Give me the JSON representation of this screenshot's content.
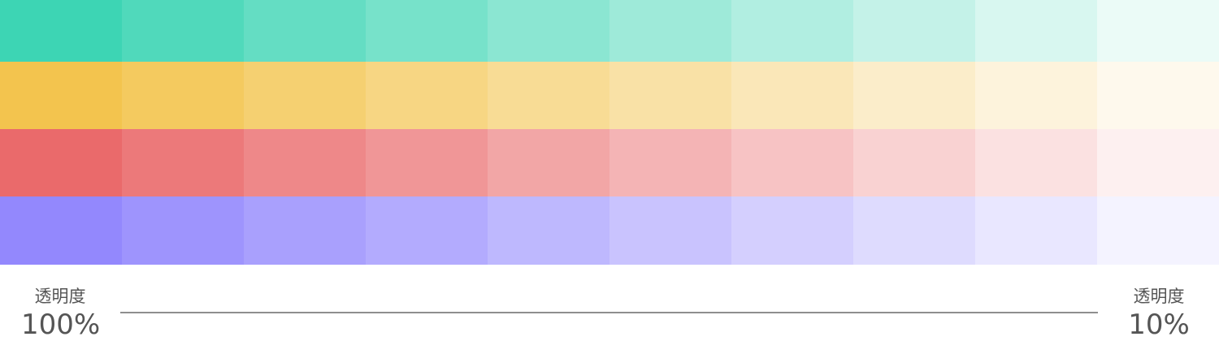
{
  "palette": {
    "rows": [
      {
        "color": "#3dd5b4"
      },
      {
        "color": "#f3c44e"
      },
      {
        "color": "#ea6a6b"
      },
      {
        "color": "#9388fd"
      }
    ],
    "opacity_steps": [
      1.0,
      0.9,
      0.8,
      0.7,
      0.6,
      0.5,
      0.4,
      0.3,
      0.2,
      0.1
    ]
  },
  "scale": {
    "left_title": "透明度",
    "left_value": "100%",
    "right_title": "透明度",
    "right_value": "10%"
  }
}
